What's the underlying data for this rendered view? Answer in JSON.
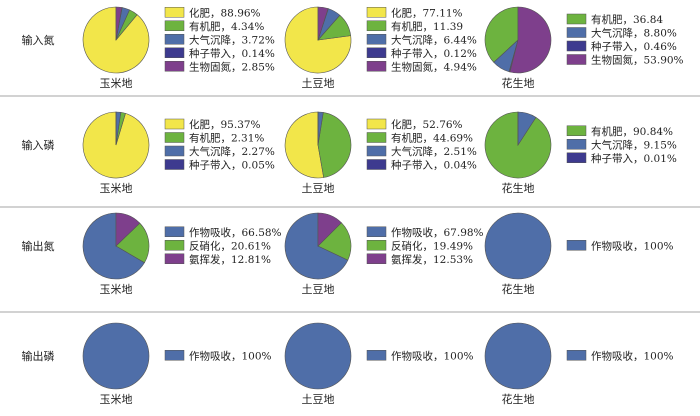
{
  "colors": {
    "yellow": "#f2e64a",
    "green": "#6db33f",
    "blue": "#4f6ea8",
    "navy": "#3d3a8f",
    "purple": "#7e3f8c",
    "divider": "#888888"
  },
  "chart_data": [
    {
      "type": "pie",
      "row_label": "输入氮",
      "title": "玉米地",
      "slices": [
        {
          "label": "化肥",
          "value": 88.96,
          "text": "88.96%",
          "color": "yellow"
        },
        {
          "label": "有机肥",
          "value": 4.34,
          "text": "4.34%",
          "color": "green"
        },
        {
          "label": "大气沉降",
          "value": 3.72,
          "text": "3.72%",
          "color": "blue"
        },
        {
          "label": "种子带入",
          "value": 0.14,
          "text": "0.14%",
          "color": "navy"
        },
        {
          "label": "生物固氮",
          "value": 2.85,
          "text": "2.85%",
          "color": "purple"
        }
      ]
    },
    {
      "type": "pie",
      "row_label": "输入氮",
      "title": "土豆地",
      "slices": [
        {
          "label": "化肥",
          "value": 77.11,
          "text": "77.11%",
          "color": "yellow"
        },
        {
          "label": "有机肥",
          "value": 11.39,
          "text": "11.39",
          "color": "green"
        },
        {
          "label": "大气沉降",
          "value": 6.44,
          "text": "6.44%",
          "color": "blue"
        },
        {
          "label": "种子带入",
          "value": 0.12,
          "text": "0.12%",
          "color": "navy"
        },
        {
          "label": "生物固氮",
          "value": 4.94,
          "text": "4.94%",
          "color": "purple"
        }
      ]
    },
    {
      "type": "pie",
      "row_label": "输入氮",
      "title": "花生地",
      "slices": [
        {
          "label": "有机肥",
          "value": 36.84,
          "text": "36.84",
          "color": "green"
        },
        {
          "label": "大气沉降",
          "value": 8.8,
          "text": "8.80%",
          "color": "blue"
        },
        {
          "label": "种子带入",
          "value": 0.46,
          "text": "0.46%",
          "color": "navy"
        },
        {
          "label": "生物固氮",
          "value": 53.9,
          "text": "53.90%",
          "color": "purple"
        }
      ]
    },
    {
      "type": "pie",
      "row_label": "输入磷",
      "title": "玉米地",
      "slices": [
        {
          "label": "化肥",
          "value": 95.37,
          "text": "95.37%",
          "color": "yellow"
        },
        {
          "label": "有机肥",
          "value": 2.31,
          "text": "2.31%",
          "color": "green"
        },
        {
          "label": "大气沉降",
          "value": 2.27,
          "text": "2.27%",
          "color": "blue"
        },
        {
          "label": "种子带入",
          "value": 0.05,
          "text": "0.05%",
          "color": "navy"
        }
      ]
    },
    {
      "type": "pie",
      "row_label": "输入磷",
      "title": "土豆地",
      "slices": [
        {
          "label": "化肥",
          "value": 52.76,
          "text": "52.76%",
          "color": "yellow"
        },
        {
          "label": "有机肥",
          "value": 44.69,
          "text": "44.69%",
          "color": "green"
        },
        {
          "label": "大气沉降",
          "value": 2.51,
          "text": "2.51%",
          "color": "blue"
        },
        {
          "label": "种子带入",
          "value": 0.04,
          "text": "0.04%",
          "color": "navy"
        }
      ]
    },
    {
      "type": "pie",
      "row_label": "输入磷",
      "title": "花生地",
      "slices": [
        {
          "label": "有机肥",
          "value": 90.84,
          "text": "90.84%",
          "color": "green"
        },
        {
          "label": "大气沉降",
          "value": 9.15,
          "text": "9.15%",
          "color": "blue"
        },
        {
          "label": "种子带入",
          "value": 0.01,
          "text": "0.01%",
          "color": "navy"
        }
      ]
    },
    {
      "type": "pie",
      "row_label": "输出氮",
      "title": "玉米地",
      "slices": [
        {
          "label": "作物吸收",
          "value": 66.58,
          "text": "66.58%",
          "color": "blue"
        },
        {
          "label": "反硝化",
          "value": 20.61,
          "text": "20.61%",
          "color": "green"
        },
        {
          "label": "氨挥发",
          "value": 12.81,
          "text": "12.81%",
          "color": "purple"
        }
      ]
    },
    {
      "type": "pie",
      "row_label": "输出氮",
      "title": "土豆地",
      "slices": [
        {
          "label": "作物吸收",
          "value": 67.98,
          "text": "67.98%",
          "color": "blue"
        },
        {
          "label": "反硝化",
          "value": 19.49,
          "text": "19.49%",
          "color": "green"
        },
        {
          "label": "氨挥发",
          "value": 12.53,
          "text": "12.53%",
          "color": "purple"
        }
      ]
    },
    {
      "type": "pie",
      "row_label": "输出氮",
      "title": "花生地",
      "slices": [
        {
          "label": "作物吸收",
          "value": 100,
          "text": "100%",
          "color": "blue"
        }
      ]
    },
    {
      "type": "pie",
      "row_label": "输出磷",
      "title": "玉米地",
      "slices": [
        {
          "label": "作物吸收",
          "value": 100,
          "text": "100%",
          "color": "blue"
        }
      ]
    },
    {
      "type": "pie",
      "row_label": "输出磷",
      "title": "土豆地",
      "slices": [
        {
          "label": "作物吸收",
          "value": 100,
          "text": "100%",
          "color": "blue"
        }
      ]
    },
    {
      "type": "pie",
      "row_label": "输出磷",
      "title": "花生地",
      "slices": [
        {
          "label": "作物吸收",
          "value": 100,
          "text": "100%",
          "color": "blue"
        }
      ]
    }
  ]
}
